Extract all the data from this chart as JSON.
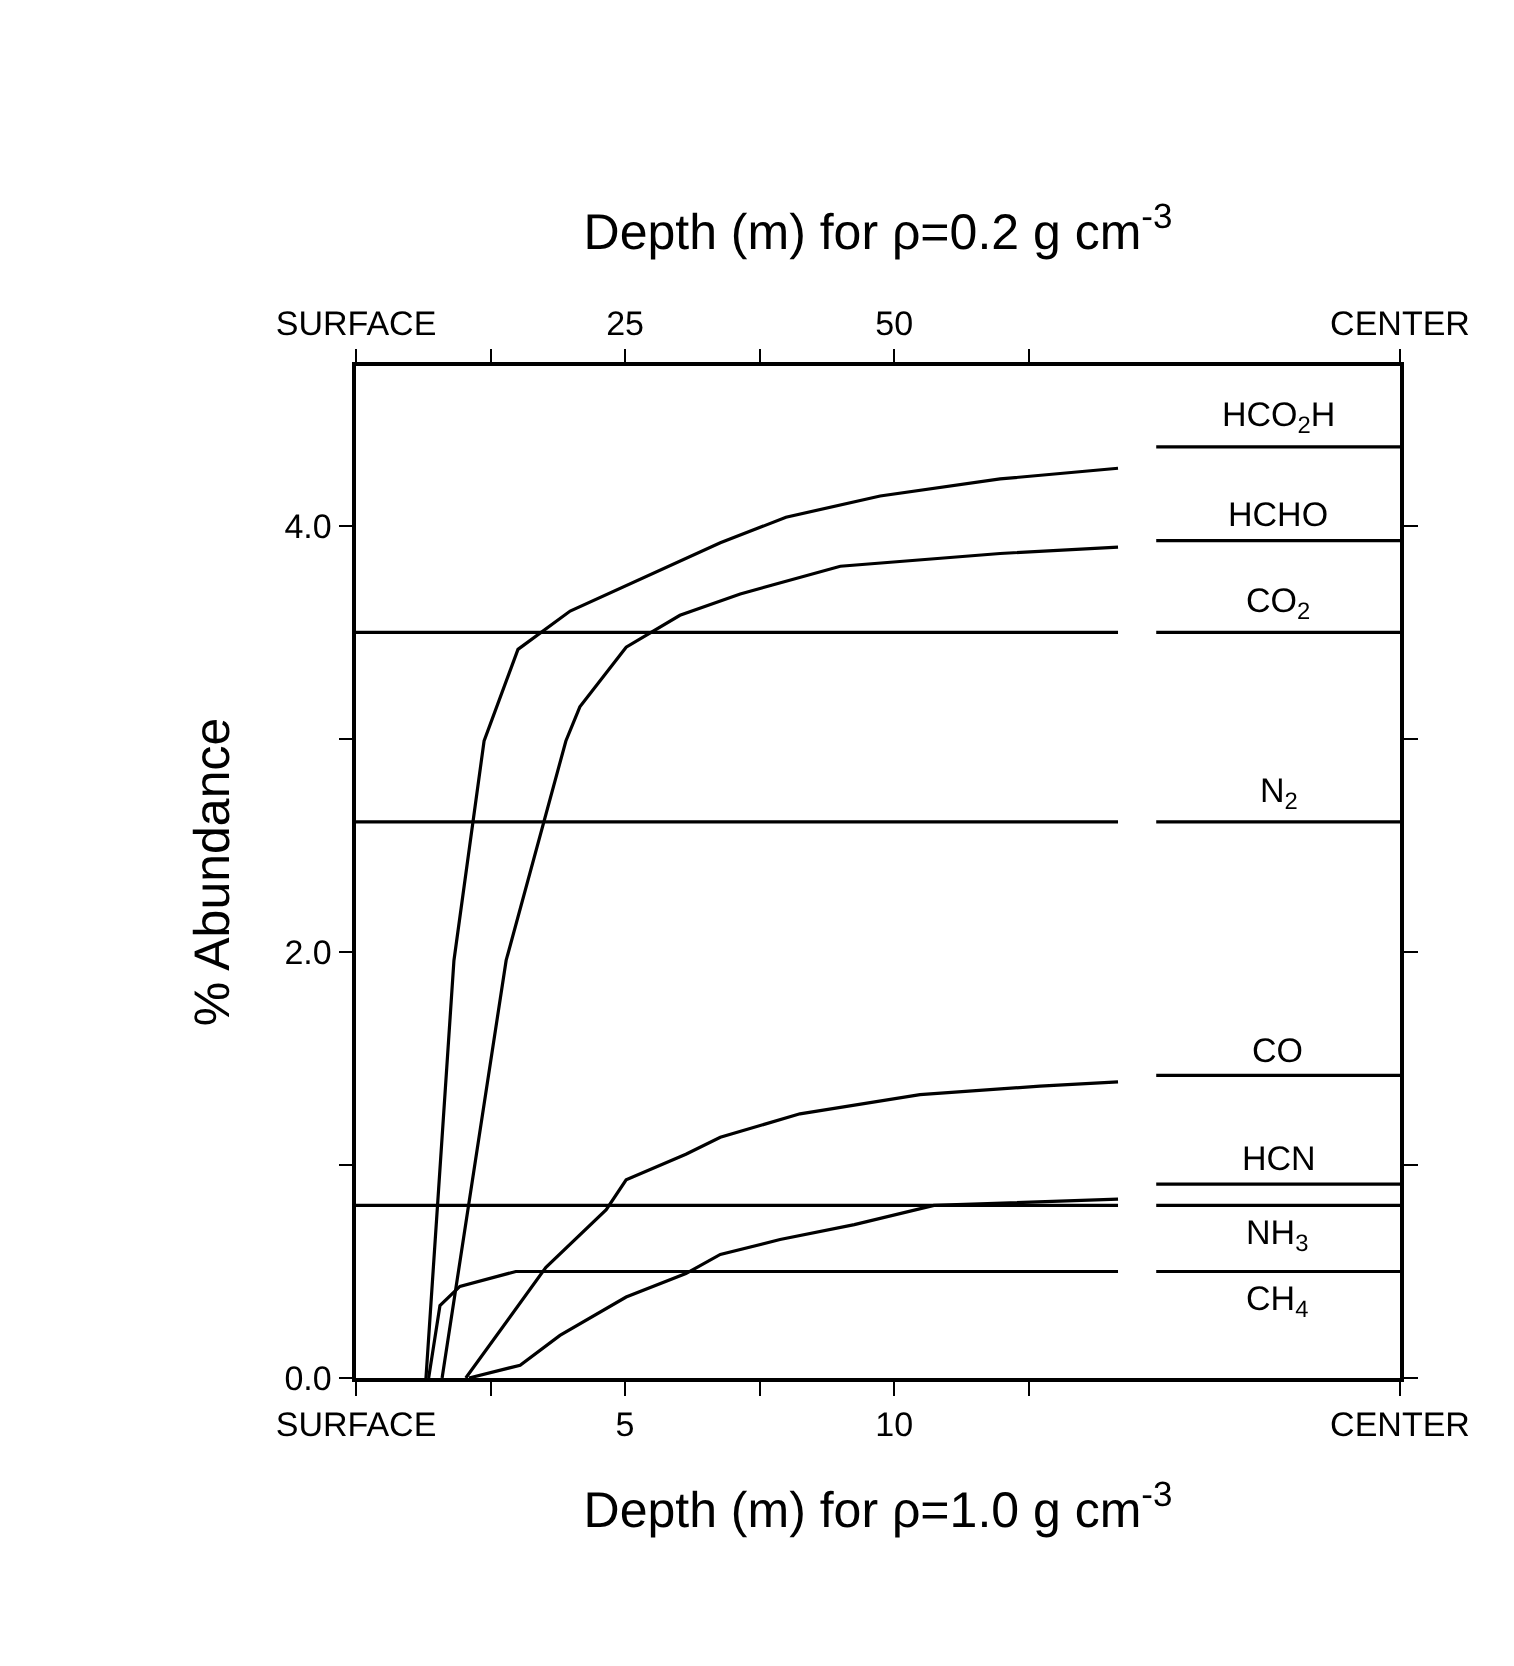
{
  "chart_data": {
    "type": "line",
    "xlabel": "Depth (m) for ρ=1.0 g cm$^{-3}$",
    "x2label": "Depth (m) for ρ=0.2 g cm$^{-3}$",
    "ylabel": "% Abundance",
    "xlim": [
      0,
      19.4
    ],
    "xticks": [
      {
        "value": 0,
        "label": "SURFACE"
      },
      {
        "value": 2.5,
        "label": null
      },
      5,
      {
        "value": 7.5,
        "label": null
      },
      10,
      {
        "value": 12.5,
        "label": null
      },
      {
        "value": 19.4,
        "label": "CENTER"
      }
    ],
    "x2lim": [
      0,
      97
    ],
    "x2ticks": [
      {
        "value": 0,
        "label": "SURFACE"
      },
      {
        "value": 12.5,
        "label": null
      },
      25,
      {
        "value": 37.5,
        "label": null
      },
      50,
      {
        "value": 62.5,
        "label": null
      },
      {
        "value": 97,
        "label": "CENTER"
      }
    ],
    "ylim": [
      0,
      4.75
    ],
    "yticks": [
      {
        "value": 0,
        "label": "0.0"
      },
      {
        "value": 1,
        "label": null
      },
      {
        "value": 2,
        "label": "2.0"
      },
      {
        "value": 3,
        "label": null
      },
      {
        "value": 4,
        "label": "4.0"
      }
    ],
    "marker": "none",
    "line_style": "solid",
    "series": [
      {
        "name": "HCO$_{2}$H",
        "color": "#000000",
        "x": [
          1.3,
          1.82,
          2.38,
          3.01,
          3.98,
          6.77,
          7.99,
          9.74,
          11.97,
          14.16,
          null,
          14.87,
          19.4
        ],
        "values": [
          0,
          1.96,
          2.99,
          3.42,
          3.6,
          3.92,
          4.04,
          4.14,
          4.22,
          4.27,
          null,
          4.37,
          4.37
        ]
      },
      {
        "name": "HCHO",
        "color": "#000000",
        "x": [
          1.6,
          2.79,
          3.9,
          4.16,
          5.02,
          6.02,
          7.14,
          9.0,
          11.97,
          14.16,
          null,
          14.87,
          19.4
        ],
        "values": [
          0,
          1.96,
          2.99,
          3.15,
          3.43,
          3.58,
          3.68,
          3.81,
          3.87,
          3.9,
          null,
          3.93,
          3.93
        ]
      },
      {
        "name": "CO$_{2}$",
        "color": "#000000",
        "x": [
          0,
          14.16,
          null,
          14.87,
          19.4
        ],
        "values": [
          3.5,
          3.5,
          null,
          3.5,
          3.5
        ]
      },
      {
        "name": "N$_{2}$",
        "color": "#000000",
        "x": [
          0,
          14.16,
          null,
          14.87,
          19.4
        ],
        "values": [
          2.61,
          2.61,
          null,
          2.61,
          2.61
        ]
      },
      {
        "name": "CO",
        "color": "#000000",
        "x": [
          2.04,
          3.53,
          4.65,
          5.02,
          6.13,
          6.77,
          8.25,
          10.48,
          12.71,
          14.16,
          null,
          14.87,
          19.4
        ],
        "values": [
          0,
          0.52,
          0.79,
          0.93,
          1.05,
          1.13,
          1.24,
          1.33,
          1.37,
          1.39,
          null,
          1.42,
          1.42
        ]
      },
      {
        "name": "HCN",
        "color": "#000000",
        "x": [
          2.1,
          3.05,
          3.79,
          5.02,
          6.13,
          6.77,
          7.88,
          9.26,
          10.74,
          14.16,
          null,
          14.87,
          19.4
        ],
        "values": [
          0,
          0.06,
          0.2,
          0.38,
          0.49,
          0.58,
          0.65,
          0.72,
          0.81,
          0.84,
          null,
          0.91,
          0.91
        ]
      },
      {
        "name": "NH$_{3}$",
        "color": "#000000",
        "x": [
          0,
          14.16,
          null,
          14.87,
          19.4
        ],
        "values": [
          0.81,
          0.81,
          null,
          0.81,
          0.81
        ]
      },
      {
        "name": "CH$_{4}$",
        "color": "#000000",
        "x": [
          1.35,
          1.56,
          1.93,
          2.97,
          14.16,
          null,
          14.87,
          19.4
        ],
        "values": [
          0,
          0.34,
          0.43,
          0.5,
          0.5,
          null,
          0.5,
          0.5
        ]
      }
    ]
  }
}
